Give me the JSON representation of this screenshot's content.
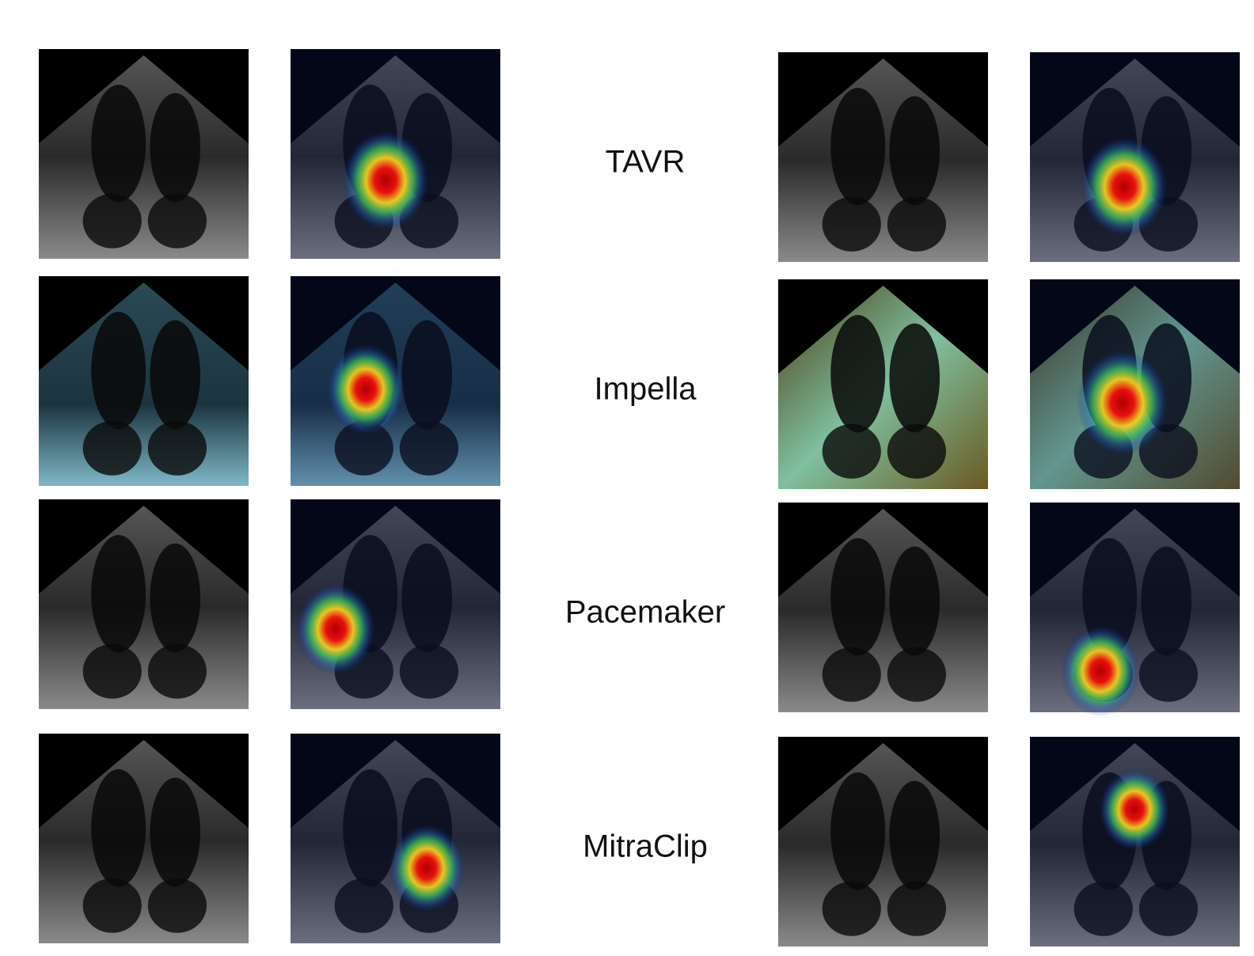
{
  "rows": [
    {
      "label": "TAVR"
    },
    {
      "label": "Impella"
    },
    {
      "label": "Pacemaker"
    },
    {
      "label": "MitraClip"
    }
  ]
}
